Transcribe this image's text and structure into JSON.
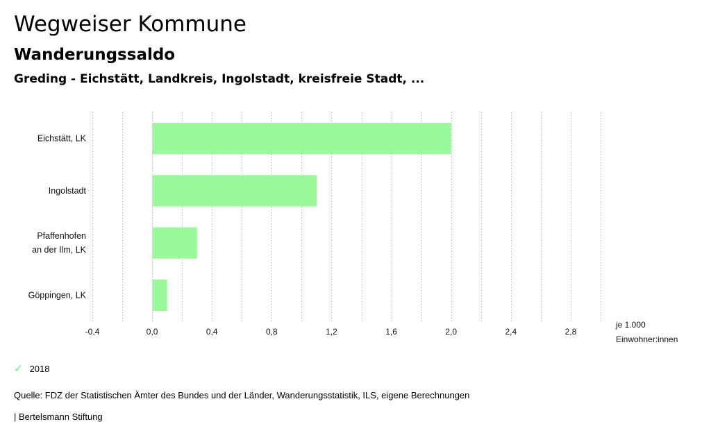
{
  "header": {
    "title": "Wegweiser Kommune",
    "subtitle": "Wanderungssaldo",
    "region": "Greding - Eichstätt, Landkreis, Ingolstadt, kreisfreie Stadt, ..."
  },
  "chart_data": {
    "type": "bar",
    "orientation": "horizontal",
    "categories": [
      [
        "Eichstätt, LK"
      ],
      [
        "Ingolstadt"
      ],
      [
        "Pfaffenhofen",
        "an der Ilm, LK"
      ],
      [
        "Göppingen, LK"
      ]
    ],
    "series": [
      {
        "name": "2018",
        "values": [
          2.0,
          1.1,
          0.3,
          0.1
        ]
      }
    ],
    "xlim": [
      -0.4,
      3.0
    ],
    "ticks": [
      -0.4,
      0.0,
      0.4,
      0.8,
      1.2,
      1.6,
      2.0,
      2.4,
      2.8
    ],
    "tick_labels": [
      "-0,4",
      "0,0",
      "0,4",
      "0,8",
      "1,2",
      "1,6",
      "2,0",
      "2,4",
      "2,8"
    ],
    "unit_label": [
      "je 1.000",
      "Einwohner:innen"
    ],
    "grid": true,
    "bar_color": "#99f899"
  },
  "legend": {
    "label": "2018",
    "color": "#8df58d"
  },
  "source": "Quelle: FDZ der Statistischen Ämter des Bundes und der Länder, Wanderungsstatistik, ILS, eigene Berechnungen",
  "footer": "| Bertelsmann Stiftung"
}
